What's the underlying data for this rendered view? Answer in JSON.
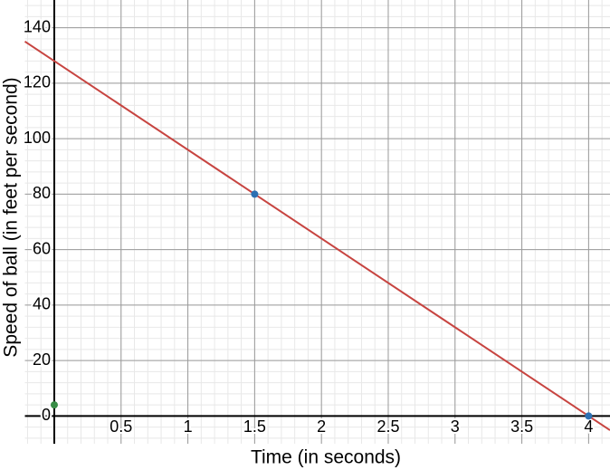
{
  "chart_data": {
    "type": "line",
    "x_label": "Time (in seconds)",
    "y_label": "Speed of ball (in feet per second)",
    "xlim": [
      -0.22,
      4.16
    ],
    "ylim": [
      -10,
      150
    ],
    "xticks": [
      0.5,
      1,
      1.5,
      2,
      2.5,
      3,
      3.5,
      4
    ],
    "yticks": [
      0,
      20,
      40,
      60,
      80,
      100,
      120,
      140
    ],
    "grid": true,
    "minor_grid": {
      "x": 0.1,
      "y": 4
    },
    "series": [
      {
        "mode": "line",
        "color": "#c74440",
        "x": [
          -0.22,
          4.16
        ],
        "values": [
          135.04,
          -5.12
        ]
      },
      {
        "mode": "points",
        "color": "#2d70b3",
        "x": [
          1.5,
          4
        ],
        "values": [
          80,
          0
        ]
      },
      {
        "mode": "points",
        "color": "#388c46",
        "x": [
          0
        ],
        "values": [
          4
        ]
      }
    ]
  }
}
